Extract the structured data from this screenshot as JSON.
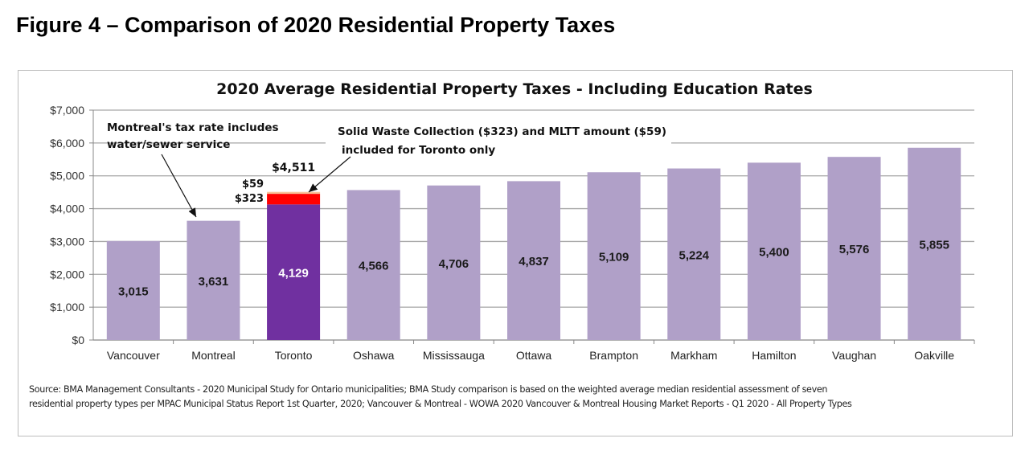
{
  "figure_title": "Figure 4 – Comparison of 2020 Residential Property Taxes",
  "chart_data": {
    "type": "bar",
    "title": "2020 Average Residential Property Taxes - Including Education Rates",
    "xlabel": "",
    "ylabel": "",
    "ylim": [
      0,
      7000
    ],
    "yticks": [
      "$0",
      "$1,000",
      "$2,000",
      "$3,000",
      "$4,000",
      "$5,000",
      "$6,000",
      "$7,000"
    ],
    "ytick_values": [
      0,
      1000,
      2000,
      3000,
      4000,
      5000,
      6000,
      7000
    ],
    "grid": "horizontal",
    "categories": [
      "Vancouver",
      "Montreal",
      "Toronto",
      "Oshawa",
      "Mississauga",
      "Ottawa",
      "Brampton",
      "Markham",
      "Hamilton",
      "Vaughan",
      "Oakville"
    ],
    "values": [
      3015,
      3631,
      4129,
      4566,
      4706,
      4837,
      5109,
      5224,
      5400,
      5576,
      5855
    ],
    "value_labels": [
      "3,015",
      "3,631",
      "4,129",
      "4,566",
      "4,706",
      "4,837",
      "5,109",
      "5,224",
      "5,400",
      "5,576",
      "5,855"
    ],
    "highlight_category": "Toronto",
    "toronto_stack": [
      {
        "value": 323,
        "label": "$323",
        "color": "#ff0000"
      },
      {
        "value": 59,
        "label": "$59",
        "color": "#f8c49a"
      }
    ],
    "toronto_total_label": "$4,511",
    "annotations": [
      {
        "lines": [
          "Montreal's tax rate includes",
          "water/sewer service"
        ],
        "target": "Montreal"
      },
      {
        "lines": [
          "Solid Waste Collection ($323) and MLTT amount ($59)",
          "included for Toronto only"
        ],
        "target": "Toronto"
      }
    ],
    "colors": {
      "bar": "#b0a0c8",
      "highlight": "#7030a0",
      "grid": "#a6a6a6"
    }
  },
  "source_lines": [
    "Source: BMA Management Consultants - 2020 Municipal Study for Ontario municipalities; BMA Study comparison is based on the weighted average median residential assessment of seven",
    "residential property types per MPAC Municipal Status Report 1st Quarter, 2020; Vancouver & Montreal - WOWA 2020 Vancouver & Montreal Housing Market Reports  - Q1 2020 - All Property Types"
  ]
}
